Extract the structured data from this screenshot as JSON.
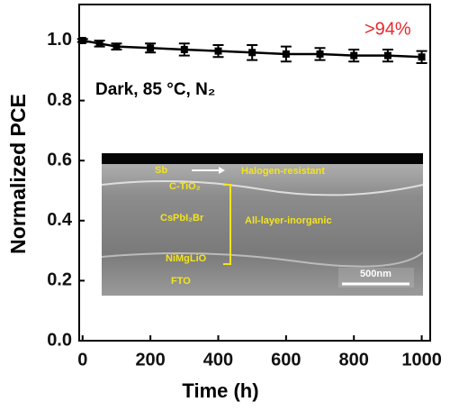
{
  "chart_data": {
    "type": "line",
    "x_label": "Time (h)",
    "y_label": "Normalized PCE",
    "annotations": [
      ">94%",
      "Dark, 85 °C, N₂"
    ],
    "inset_labels": [
      "Sb",
      "Halogen-resistant",
      "C-TiO₂",
      "CsPbI₂Br",
      "All-layer-inorganic",
      "NiMgLiO",
      "FTO",
      "500nm"
    ],
    "x": [
      0,
      50,
      100,
      200,
      300,
      400,
      500,
      600,
      700,
      800,
      900,
      1000
    ],
    "series": [
      {
        "color": "#000000",
        "values": [
          1.0,
          0.99,
          0.98,
          0.975,
          0.97,
          0.965,
          0.96,
          0.955,
          0.955,
          0.95,
          0.95,
          0.945
        ],
        "errors": [
          0.005,
          0.01,
          0.01,
          0.015,
          0.02,
          0.02,
          0.025,
          0.025,
          0.02,
          0.02,
          0.02,
          0.02
        ]
      }
    ],
    "xlim": [
      -10,
      1025
    ],
    "ylim": [
      0,
      1.12
    ],
    "xticks": [
      0,
      200,
      400,
      600,
      800,
      1000
    ],
    "yticks": [
      {
        "value": 0,
        "label": "0.0"
      },
      0.2,
      0.4,
      0.6,
      0.8,
      {
        "value": 1,
        "label": "1.0"
      }
    ],
    "annotation_color": "#e8262a"
  }
}
